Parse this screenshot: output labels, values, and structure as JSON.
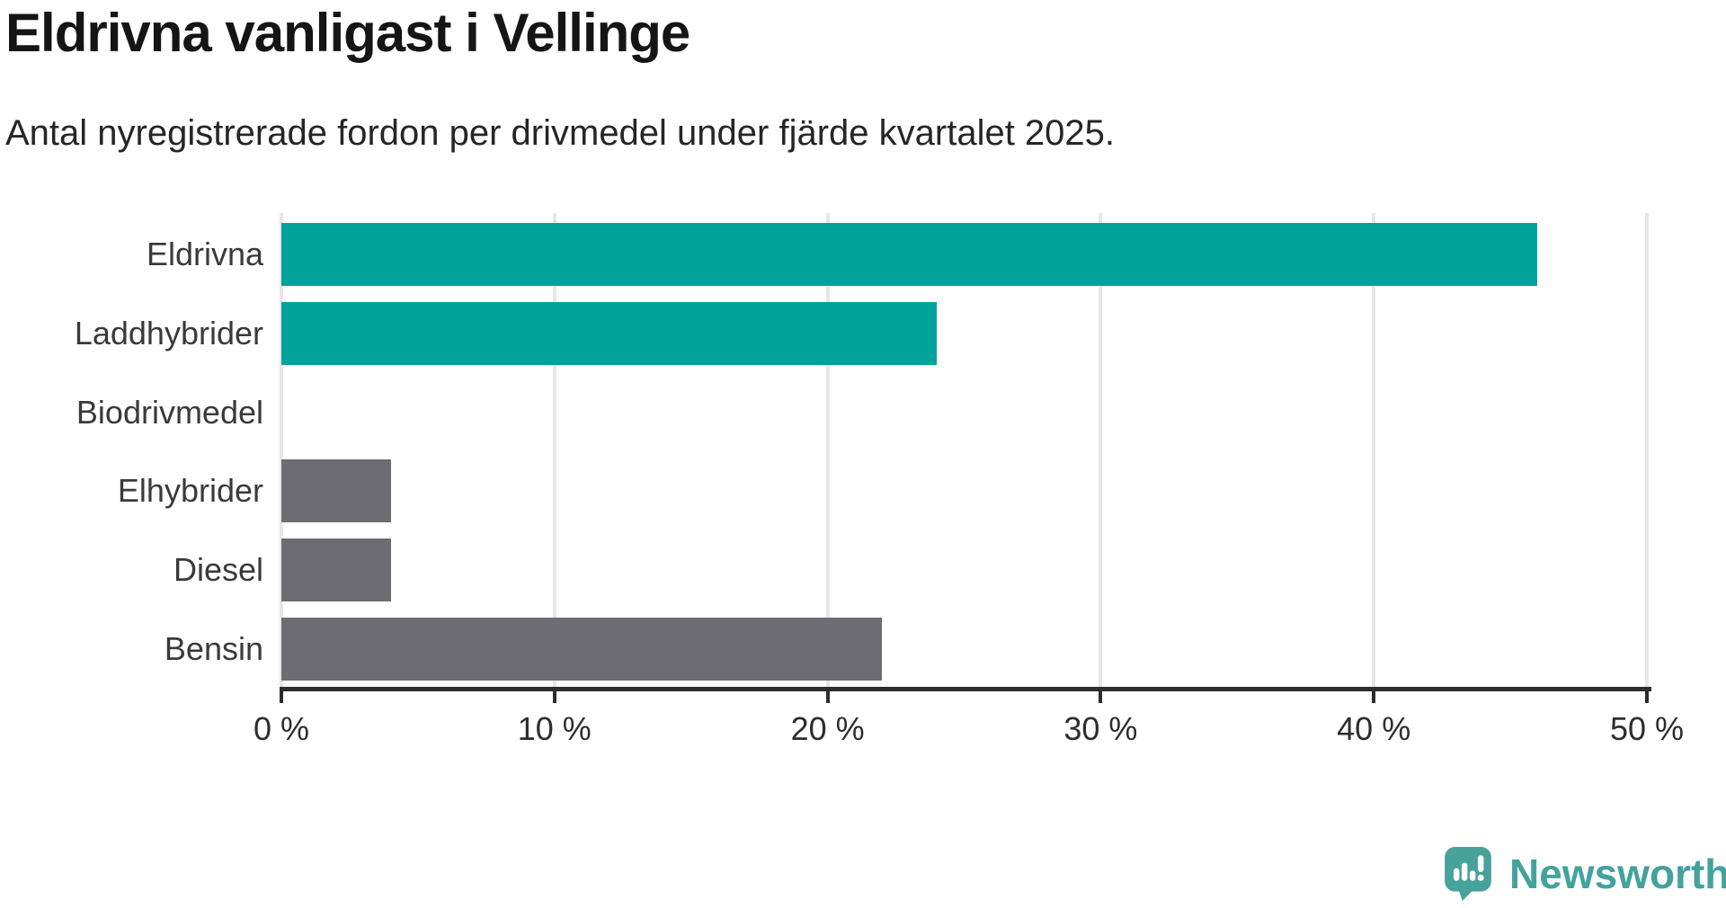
{
  "title": "Eldrivna vanligast i Vellinge",
  "subtitle": "Antal nyregistrerade fordon per drivmedel under fjärde kvartalet 2025.",
  "chart_data": {
    "type": "bar",
    "orientation": "horizontal",
    "title": "Eldrivna vanligast i Vellinge",
    "subtitle": "Antal nyregistrerade fordon per drivmedel under fjärde kvartalet 2025.",
    "categories": [
      "Eldrivna",
      "Laddhybrider",
      "Biodrivmedel",
      "Elhybrider",
      "Diesel",
      "Bensin"
    ],
    "values": [
      46,
      24,
      0,
      4,
      4,
      22
    ],
    "unit": "%",
    "xlim": [
      0,
      50
    ],
    "x_ticks": [
      0,
      10,
      20,
      30,
      40,
      50
    ],
    "x_tick_labels": [
      "0 %",
      "10 %",
      "20 %",
      "30 %",
      "40 %",
      "50 %"
    ],
    "grid": true,
    "legend": false,
    "bar_colors": [
      "#00a39a",
      "#00a39a",
      "#00a39a",
      "#6c6c72",
      "#6c6c72",
      "#6c6c72"
    ]
  },
  "colors": {
    "accent_teal": "#00a39a",
    "neutral_gray": "#6c6c72",
    "axis": "#2d2d2d",
    "gridline": "#e7e7e7",
    "logo_teal": "#48a29c",
    "logo_text_teal": "#43a29c"
  },
  "footer": {
    "brand": "Newsworthy",
    "logo_icon": "newsworthy-speech-bubble-chart-icon"
  }
}
